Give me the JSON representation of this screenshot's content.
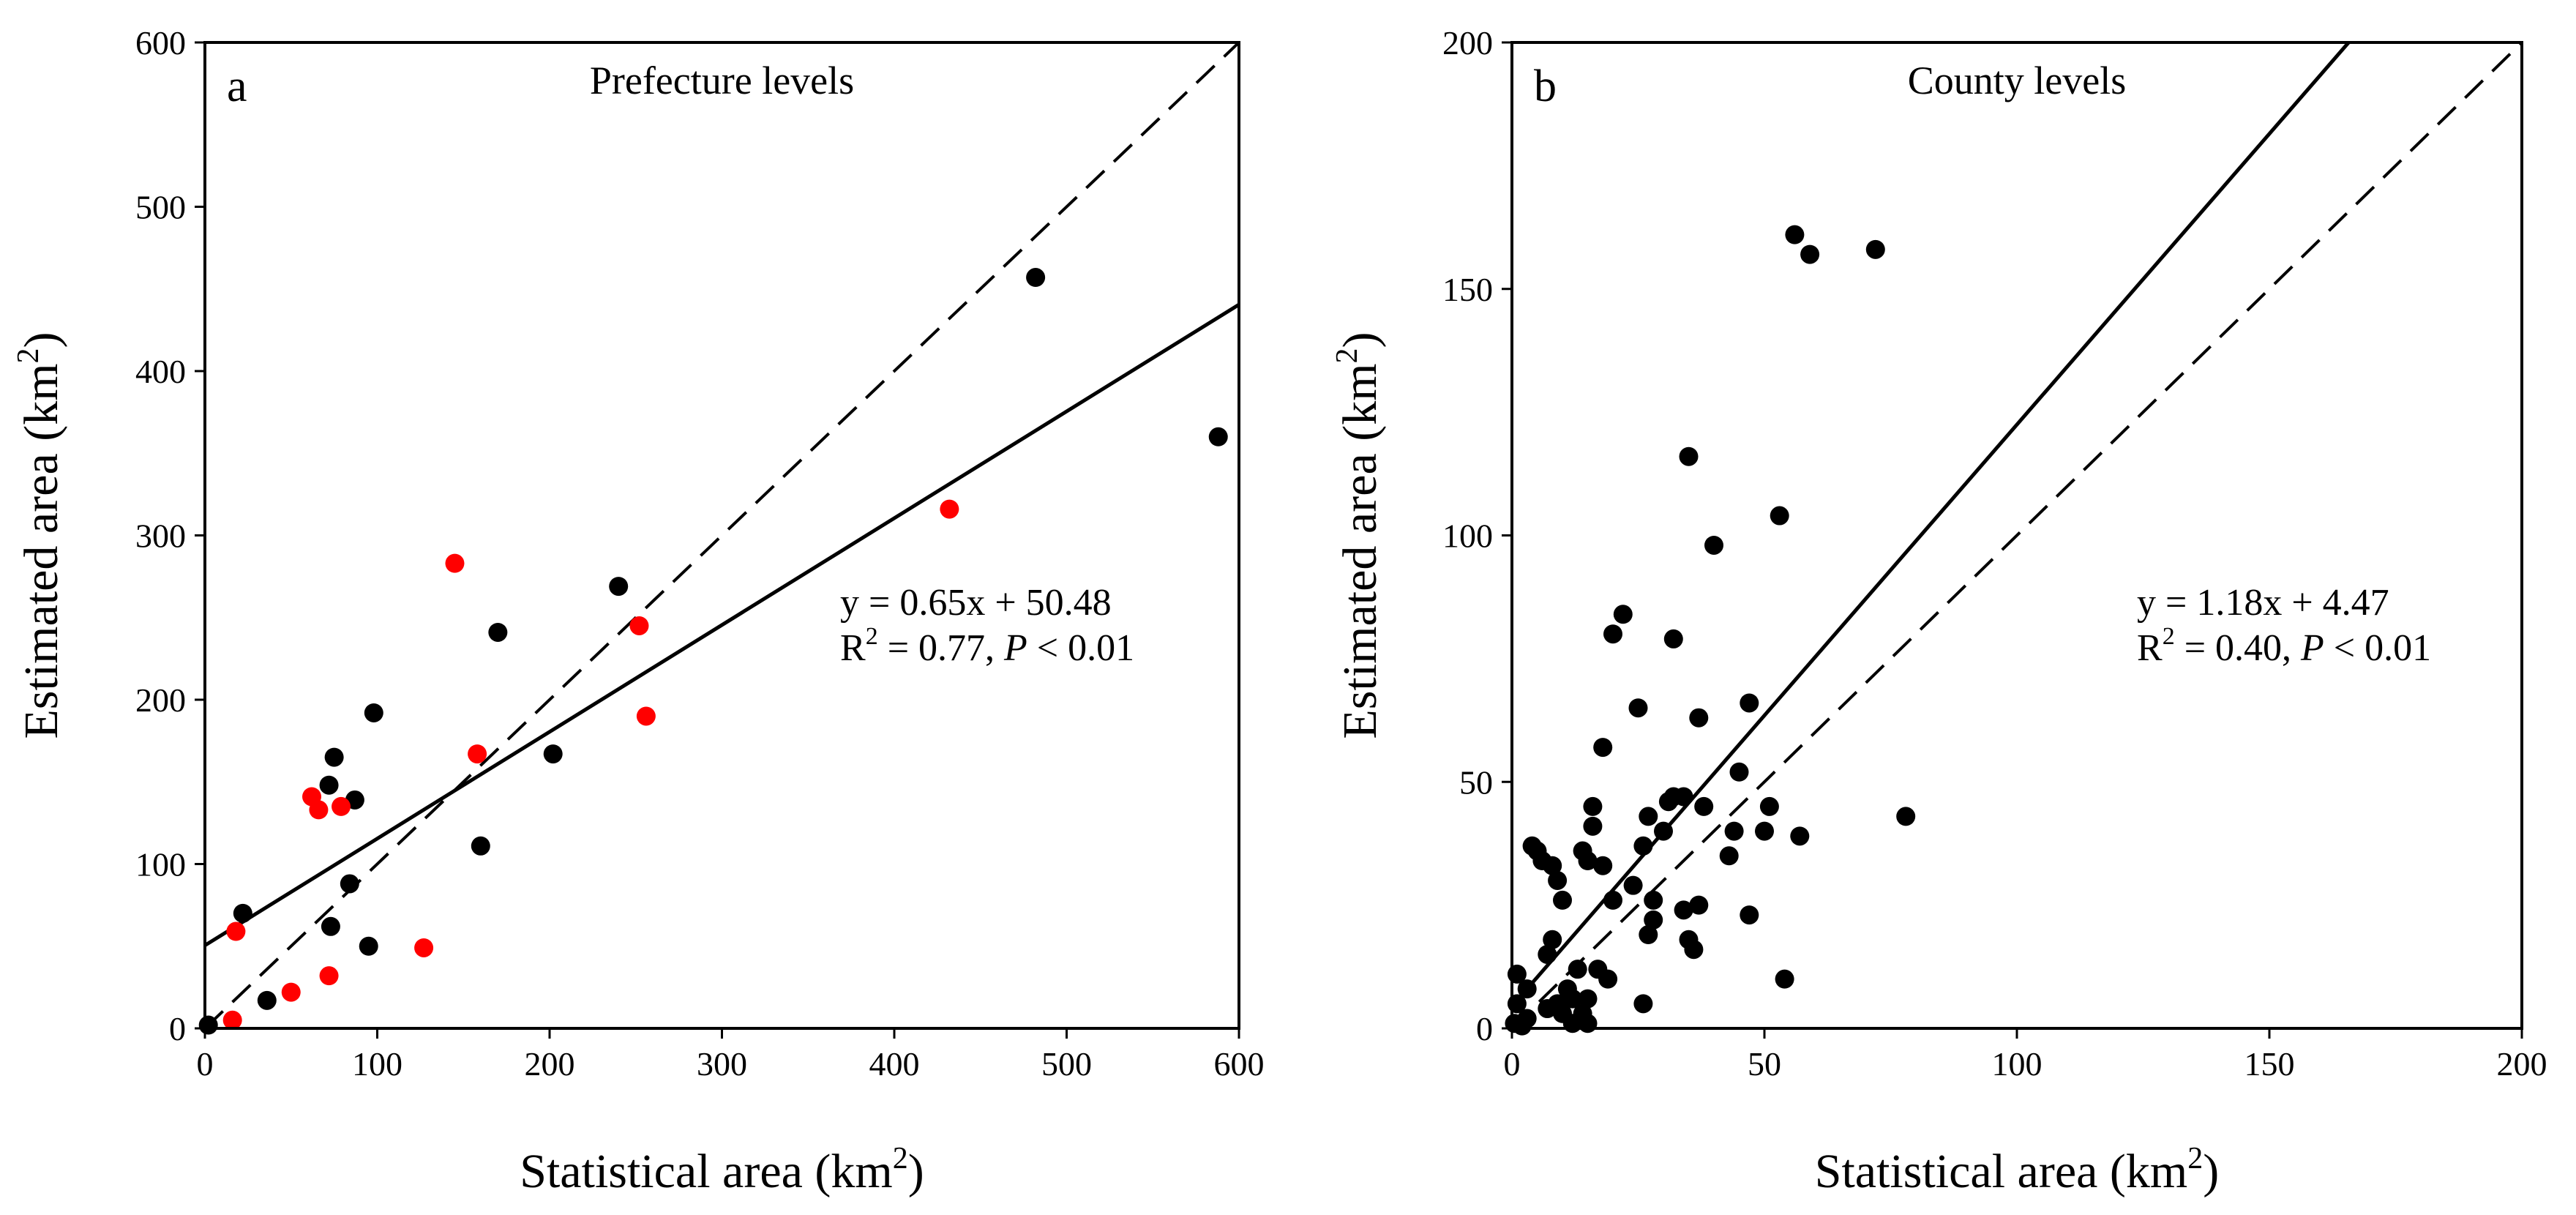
{
  "chart_data": [
    {
      "type": "scatter",
      "panel_label": "a",
      "title": "Prefecture levels",
      "xlabel": "Statistical area (km",
      "ylabel": "Estimated area (km",
      "unit_superscript": "2",
      "xlim": [
        0,
        600
      ],
      "ylim": [
        0,
        600
      ],
      "xticks": [
        "0",
        "100",
        "200",
        "300",
        "400",
        "500",
        "600"
      ],
      "yticks": [
        "0",
        "100",
        "200",
        "300",
        "400",
        "500",
        "600"
      ],
      "xtick_values": [
        0,
        100,
        200,
        300,
        400,
        500,
        600
      ],
      "ytick_values": [
        0,
        100,
        200,
        300,
        400,
        500,
        600
      ],
      "equation": "y = 0.65x + 50.48",
      "r2_prefix": "R",
      "r2_text": " = 0.77, ",
      "p_symbol": "P",
      "p_text": " < 0.01",
      "fit_line": {
        "slope": 0.65,
        "intercept": 50.48,
        "style": "solid"
      },
      "reference_line": {
        "slope": 1,
        "intercept": 0,
        "style": "dashed"
      },
      "series": [
        {
          "name": "black points",
          "color": "#000000",
          "points": [
            [
              2,
              2
            ],
            [
              22,
              70
            ],
            [
              36,
              17
            ],
            [
              72,
              148
            ],
            [
              75,
              165
            ],
            [
              87,
              139
            ],
            [
              84,
              88
            ],
            [
              73,
              62
            ],
            [
              95,
              50
            ],
            [
              98,
              192
            ],
            [
              160,
              111
            ],
            [
              170,
              241
            ],
            [
              202,
              167
            ],
            [
              240,
              269
            ],
            [
              482,
              457
            ],
            [
              588,
              360
            ]
          ]
        },
        {
          "name": "red points",
          "color": "#ff0000",
          "points": [
            [
              16,
              5
            ],
            [
              18,
              59
            ],
            [
              50,
              22
            ],
            [
              62,
              141
            ],
            [
              66,
              133
            ],
            [
              72,
              32
            ],
            [
              79,
              135
            ],
            [
              127,
              49
            ],
            [
              145,
              283
            ],
            [
              158,
              167
            ],
            [
              252,
              245
            ],
            [
              256,
              190
            ],
            [
              432,
              316
            ]
          ]
        }
      ]
    },
    {
      "type": "scatter",
      "panel_label": "b",
      "title": "County levels",
      "xlabel": "Statistical area (km",
      "ylabel": "Estimated area (km",
      "unit_superscript": "2",
      "xlim": [
        0,
        200
      ],
      "ylim": [
        0,
        200
      ],
      "xticks": [
        "0",
        "50",
        "100",
        "150",
        "200"
      ],
      "yticks": [
        "0",
        "50",
        "100",
        "150",
        "200"
      ],
      "xtick_values": [
        0,
        50,
        100,
        150,
        200
      ],
      "ytick_values": [
        0,
        50,
        100,
        150,
        200
      ],
      "equation": "y = 1.18x + 4.47",
      "r2_prefix": "R",
      "r2_text": " = 0.40, ",
      "p_symbol": "P",
      "p_text": " < 0.01",
      "fit_line": {
        "slope": 1.18,
        "intercept": 4.47,
        "style": "solid"
      },
      "reference_line": {
        "slope": 1,
        "intercept": 0,
        "style": "dashed"
      },
      "series": [
        {
          "name": "black points",
          "color": "#000000",
          "points": [
            [
              0.5,
              1
            ],
            [
              1,
              5
            ],
            [
              1,
              11
            ],
            [
              2,
              0.5
            ],
            [
              3,
              2
            ],
            [
              3,
              8
            ],
            [
              4,
              37
            ],
            [
              5,
              36
            ],
            [
              6,
              34
            ],
            [
              7,
              4
            ],
            [
              7,
              15
            ],
            [
              8,
              33
            ],
            [
              8,
              18
            ],
            [
              9,
              5
            ],
            [
              9,
              30
            ],
            [
              10,
              26
            ],
            [
              10,
              3
            ],
            [
              11,
              8
            ],
            [
              12,
              6
            ],
            [
              12,
              1
            ],
            [
              13,
              12
            ],
            [
              14,
              3
            ],
            [
              14,
              36
            ],
            [
              15,
              34
            ],
            [
              15,
              6
            ],
            [
              15,
              1
            ],
            [
              16,
              45
            ],
            [
              16,
              41
            ],
            [
              17,
              12
            ],
            [
              18,
              33
            ],
            [
              18,
              57
            ],
            [
              19,
              10
            ],
            [
              20,
              26
            ],
            [
              20,
              80
            ],
            [
              22,
              84
            ],
            [
              24,
              29
            ],
            [
              25,
              65
            ],
            [
              26,
              37
            ],
            [
              26,
              5
            ],
            [
              27,
              43
            ],
            [
              27,
              19
            ],
            [
              28,
              22
            ],
            [
              28,
              26
            ],
            [
              30,
              40
            ],
            [
              31,
              46
            ],
            [
              32,
              79
            ],
            [
              32,
              47
            ],
            [
              34,
              47
            ],
            [
              34,
              24
            ],
            [
              35,
              18
            ],
            [
              35,
              116
            ],
            [
              36,
              16
            ],
            [
              37,
              25
            ],
            [
              37,
              63
            ],
            [
              38,
              45
            ],
            [
              40,
              98
            ],
            [
              43,
              35
            ],
            [
              44,
              40
            ],
            [
              45,
              52
            ],
            [
              47,
              66
            ],
            [
              47,
              23
            ],
            [
              50,
              40
            ],
            [
              51,
              45
            ],
            [
              53,
              104
            ],
            [
              54,
              10
            ],
            [
              56,
              161
            ],
            [
              57,
              39
            ],
            [
              59,
              157
            ],
            [
              72,
              158
            ],
            [
              78,
              43
            ]
          ]
        }
      ]
    }
  ]
}
